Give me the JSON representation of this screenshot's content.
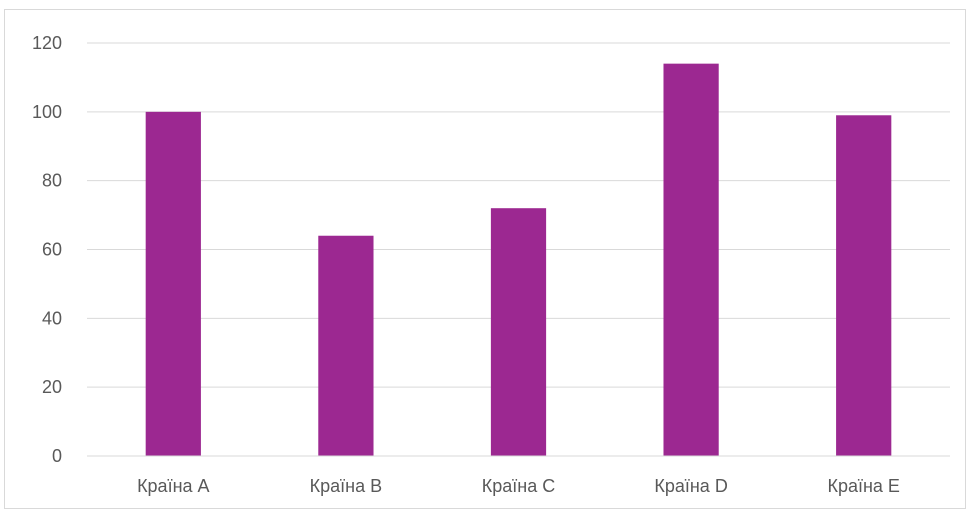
{
  "chart_data": {
    "type": "bar",
    "categories": [
      "Країна A",
      "Країна B",
      "Країна C",
      "Країна D",
      "Країна E"
    ],
    "values": [
      100,
      64,
      72,
      114,
      99
    ],
    "title": "",
    "xlabel": "",
    "ylabel": "",
    "ylim": [
      0,
      120
    ],
    "yticks": [
      "0",
      "20",
      "40",
      "60",
      "80",
      "100",
      "120"
    ],
    "grid": "horizontal",
    "legend": "none",
    "bar_color": "#9c2891",
    "gridline_color": "#d9d9d9",
    "tick_label_color": "#595959"
  }
}
